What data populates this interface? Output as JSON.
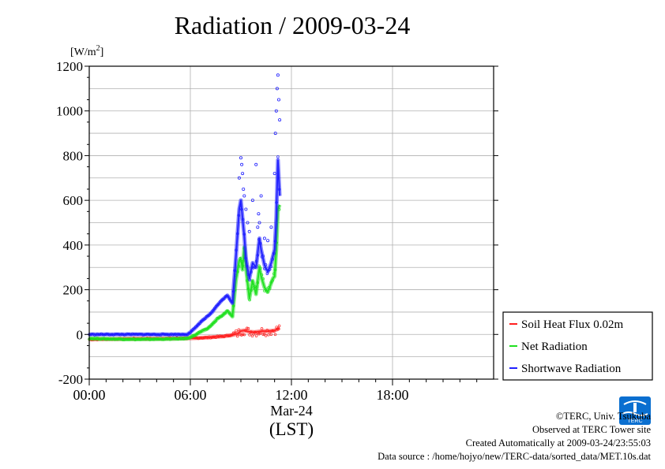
{
  "chart_data": {
    "type": "scatter",
    "title": "Radiation / 2009-03-24",
    "ylabel": "[W/m2]",
    "xlabel": "(LST)",
    "date_label": "Mar-24",
    "xlim": [
      "00:00",
      "24:00"
    ],
    "ylim": [
      -200,
      1200
    ],
    "x_ticks": [
      "00:00",
      "06:00",
      "12:00",
      "18:00"
    ],
    "y_ticks": [
      -200,
      0,
      200,
      400,
      600,
      800,
      1000,
      1200
    ],
    "grid": true,
    "legend_position": "bottom-right",
    "x_unit": "hours LST",
    "series": [
      {
        "name": "Soil Heat Flux 0.02m",
        "color": "#ff2020",
        "x": [
          0,
          1,
          2,
          3,
          4,
          5,
          6,
          7,
          7.5,
          8,
          8.5,
          8.8,
          9,
          9.2,
          9.5,
          9.8,
          10,
          10.3,
          10.5,
          10.8,
          11,
          11.2,
          11.3
        ],
        "y": [
          -22,
          -21,
          -20,
          -19,
          -19,
          -18,
          -17,
          -14,
          -11,
          -8,
          -2,
          3,
          15,
          18,
          12,
          10,
          12,
          15,
          14,
          16,
          18,
          25,
          30
        ]
      },
      {
        "name": "Net Radiation",
        "color": "#20e020",
        "x": [
          0,
          1,
          2,
          3,
          4,
          5,
          5.8,
          6,
          6.3,
          6.6,
          7,
          7.3,
          7.6,
          7.9,
          8.2,
          8.5,
          8.7,
          8.9,
          9,
          9.1,
          9.2,
          9.3,
          9.5,
          9.7,
          9.9,
          10.1,
          10.2,
          10.4,
          10.6,
          10.8,
          10.9,
          11,
          11.1,
          11.2,
          11.3
        ],
        "y": [
          -18,
          -20,
          -21,
          -22,
          -21,
          -20,
          -18,
          -12,
          -2,
          12,
          25,
          45,
          70,
          85,
          105,
          80,
          240,
          330,
          340,
          290,
          390,
          300,
          160,
          240,
          180,
          300,
          260,
          210,
          190,
          230,
          250,
          260,
          380,
          560,
          580
        ]
      },
      {
        "name": "Shortwave Radiation",
        "color": "#2020ff",
        "x": [
          0,
          1,
          2,
          3,
          4,
          5,
          5.8,
          6,
          6.3,
          6.6,
          7,
          7.3,
          7.6,
          7.9,
          8.2,
          8.5,
          8.7,
          8.9,
          9,
          9.1,
          9.2,
          9.3,
          9.5,
          9.7,
          9.9,
          10.1,
          10.2,
          10.4,
          10.6,
          10.8,
          10.9,
          11,
          11.1,
          11.2,
          11.3
        ],
        "y": [
          0,
          0,
          0,
          0,
          0,
          0,
          0,
          10,
          30,
          55,
          80,
          100,
          130,
          155,
          175,
          140,
          340,
          560,
          600,
          520,
          440,
          340,
          250,
          320,
          300,
          430,
          380,
          310,
          280,
          320,
          350,
          380,
          520,
          780,
          620
        ]
      }
    ],
    "scatter_outliers": {
      "x": [
        8.9,
        9.0,
        9.05,
        9.1,
        9.15,
        9.2,
        9.3,
        9.4,
        9.5,
        9.7,
        9.9,
        10.0,
        10.05,
        10.1,
        10.2,
        10.4,
        10.6,
        10.8,
        11.0,
        11.05,
        11.1,
        11.15,
        11.2,
        11.25,
        11.3
      ],
      "y": [
        700,
        790,
        760,
        720,
        650,
        620,
        560,
        500,
        460,
        600,
        760,
        480,
        540,
        500,
        620,
        430,
        420,
        480,
        720,
        900,
        1000,
        1100,
        1160,
        1050,
        960
      ]
    }
  },
  "credits": {
    "copyright": "©TERC, Univ. Tsukuba",
    "site": "Observed at TERC Tower site",
    "created": "Created Automatically at 2009-03-24/23:55:03",
    "source": "Data source : /home/hojyo/new/TERC-data/sorted_data/MET.10s.dat",
    "logo_text": "TERC"
  }
}
